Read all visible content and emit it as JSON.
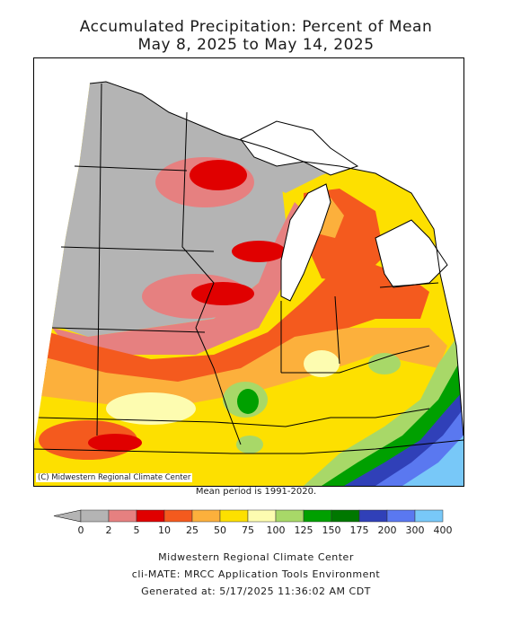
{
  "title": {
    "line1": "Accumulated Precipitation: Percent of Mean",
    "line2": "May 8, 2025 to May 14, 2025"
  },
  "map": {
    "copyright": "(C) Midwestern Regional Climate Center",
    "mean_period": "Mean period is 1991-2020."
  },
  "legend": {
    "colors": [
      "#b4b4b4",
      "#e68080",
      "#e00000",
      "#f45a1e",
      "#fcb03c",
      "#fde000",
      "#fdfcb0",
      "#a8d868",
      "#00a000",
      "#007800",
      "#3040b8",
      "#5a78f0",
      "#78c8f8"
    ],
    "labels": [
      "0",
      "2",
      "5",
      "10",
      "25",
      "50",
      "75",
      "100",
      "125",
      "150",
      "175",
      "200",
      "300",
      "400"
    ]
  },
  "footer": {
    "line1": "Midwestern Regional Climate Center",
    "line2": "cli-MATE: MRCC Application Tools Environment",
    "line3": "Generated at: 5/17/2025 11:36:02 AM CDT"
  }
}
